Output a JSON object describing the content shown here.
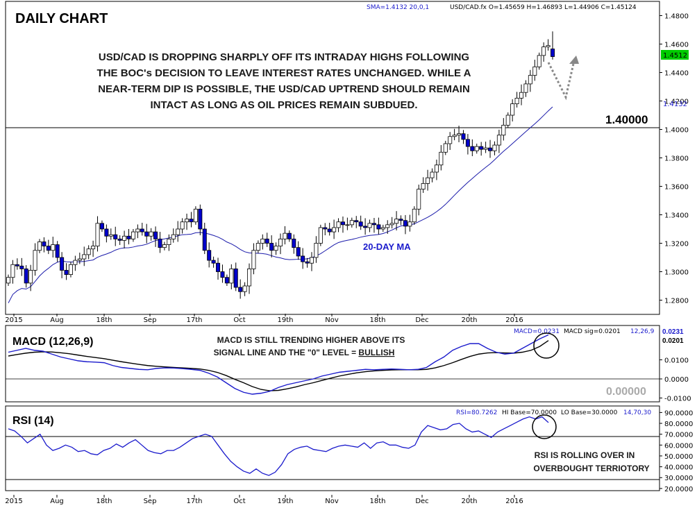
{
  "header": {
    "title": "DAILY CHART",
    "sma_legend": "SMA=1.4132  20,0,1",
    "ohlc_legend": "USD/CAD.fx O=1.45659 H=1.46893 L=1.44906 C=1.45124"
  },
  "annotations": {
    "main_lines": [
      "USD/CAD IS DROPPING SHARPLY OFF ITS INTRADAY HIGHS FOLLOWING",
      "THE BOC's DECISION TO LEAVE INTEREST RATES UNCHANGED. WHILE A",
      "NEAR-TERM DIP IS POSSIBLE, THE USD/CAD UPTREND SHOULD REMAIN",
      "INTACT AS LONG AS OIL PRICES REMAIN SUBDUED."
    ],
    "ma_label": "20-DAY MA",
    "level_label": "1.40000",
    "macd_lines": [
      "MACD IS STILL TRENDING HIGHER ABOVE ITS",
      "SIGNAL LINE AND THE \"0\" LEVEL = ",
      "BULLISH"
    ],
    "rsi_lines": [
      "RSI IS ROLLING OVER IN",
      "OVERBOUGHT TERRIOTORY"
    ]
  },
  "macd_panel": {
    "title": "MACD (12,26,9)",
    "legend_macd": "MACD=0.0231",
    "legend_sig": "MACD sig=0.0201",
    "legend_params": "12,26,9",
    "zero_label": "0.00000",
    "value_tag": "0.0231",
    "sig_tag": "0.0201"
  },
  "rsi_panel": {
    "title": "RSI (14)",
    "legend_rsi": "RSI=80.7262",
    "legend_hi": "HI Base=70.0000",
    "legend_lo": "LO Base=30.0000",
    "legend_params": "14,70,30"
  },
  "price_tags": {
    "last": "1.4512",
    "sma": "1.4132"
  },
  "x_axis_labels": [
    "2015",
    "Aug",
    "18th",
    "Sep",
    "17th",
    "Oct",
    "19th",
    "Nov",
    "18th",
    "Dec",
    "20th",
    "2016"
  ],
  "colors": {
    "up": "#ffffff",
    "down": "#0000cc",
    "ma": "#1a1aaa",
    "macd": "#1a1acc",
    "signal": "#000000",
    "last_tag": "#00cc00",
    "annotation": "#1a1a1a",
    "bullish": "#1a1a1a"
  },
  "chart_data": [
    {
      "type": "candlestick",
      "title": "DAILY CHART",
      "symbol": "USD/CAD.fx",
      "ylim": [
        1.27,
        1.49
      ],
      "yticks": [
        "1.4800",
        "1.4600",
        "1.4400",
        "1.4200",
        "1.4000",
        "1.3800",
        "1.3600",
        "1.3400",
        "1.3200",
        "1.3000",
        "1.2800"
      ],
      "reference_line": 1.4,
      "moving_average": {
        "name": "SMA 20",
        "last": 1.4132
      },
      "ohlc_last": {
        "open": 1.45659,
        "high": 1.46893,
        "low": 1.44906,
        "close": 1.45124
      },
      "closes": [
        1.296,
        1.305,
        1.304,
        1.302,
        1.292,
        1.301,
        1.315,
        1.321,
        1.318,
        1.315,
        1.319,
        1.31,
        1.301,
        1.298,
        1.305,
        1.308,
        1.309,
        1.312,
        1.316,
        1.318,
        1.334,
        1.33,
        1.325,
        1.326,
        1.323,
        1.322,
        1.325,
        1.323,
        1.328,
        1.33,
        1.328,
        1.325,
        1.328,
        1.323,
        1.317,
        1.319,
        1.323,
        1.326,
        1.33,
        1.335,
        1.337,
        1.335,
        1.344,
        1.33,
        1.315,
        1.308,
        1.306,
        1.3,
        1.296,
        1.292,
        1.302,
        1.289,
        1.286,
        1.29,
        1.302,
        1.315,
        1.32,
        1.323,
        1.32,
        1.315,
        1.318,
        1.323,
        1.327,
        1.323,
        1.317,
        1.311,
        1.307,
        1.306,
        1.31,
        1.32,
        1.331,
        1.33,
        1.328,
        1.331,
        1.335,
        1.333,
        1.333,
        1.336,
        1.335,
        1.332,
        1.331,
        1.334,
        1.333,
        1.33,
        1.331,
        1.333,
        1.334,
        1.337,
        1.336,
        1.332,
        1.335,
        1.344,
        1.358,
        1.362,
        1.366,
        1.37,
        1.375,
        1.384,
        1.39,
        1.395,
        1.396,
        1.397,
        1.393,
        1.388,
        1.385,
        1.388,
        1.386,
        1.387,
        1.385,
        1.389,
        1.396,
        1.403,
        1.41,
        1.418,
        1.422,
        1.426,
        1.432,
        1.438,
        1.444,
        1.452,
        1.458,
        1.459,
        1.4512
      ]
    },
    {
      "type": "line",
      "title": "MACD (12,26,9)",
      "series": [
        {
          "name": "MACD"
        },
        {
          "name": "MACD sig"
        }
      ],
      "last": {
        "macd": 0.0231,
        "signal": 0.0201
      },
      "ylim": [
        -0.012,
        0.028
      ],
      "yticks": [
        "0.0100",
        "0.0000",
        "-0.0100"
      ],
      "macd": [
        0.014,
        0.015,
        0.016,
        0.015,
        0.0145,
        0.013,
        0.0115,
        0.0105,
        0.0095,
        0.009,
        0.0088,
        0.0085,
        0.007,
        0.006,
        0.0055,
        0.005,
        0.0048,
        0.0055,
        0.0058,
        0.0057,
        0.0054,
        0.005,
        0.0045,
        0.003,
        0.001,
        -0.002,
        -0.005,
        -0.007,
        -0.008,
        -0.0075,
        -0.0065,
        -0.0045,
        -0.003,
        -0.002,
        -0.001,
        0.0,
        0.0015,
        0.0025,
        0.0035,
        0.004,
        0.0045,
        0.005,
        0.0048,
        0.005,
        0.0052,
        0.005,
        0.0048,
        0.005,
        0.006,
        0.009,
        0.0115,
        0.015,
        0.017,
        0.0185,
        0.0185,
        0.016,
        0.014,
        0.013,
        0.0135,
        0.016,
        0.0185,
        0.021,
        0.0231
      ],
      "signal": [
        0.012,
        0.0128,
        0.0135,
        0.014,
        0.0142,
        0.0141,
        0.0137,
        0.0132,
        0.0125,
        0.0118,
        0.0112,
        0.0106,
        0.0098,
        0.009,
        0.0083,
        0.0076,
        0.007,
        0.0066,
        0.0063,
        0.006,
        0.0058,
        0.0055,
        0.0052,
        0.0045,
        0.0034,
        0.0018,
        -0.0002,
        -0.002,
        -0.004,
        -0.0055,
        -0.0062,
        -0.006,
        -0.0052,
        -0.0042,
        -0.003,
        -0.002,
        -0.0008,
        0.0004,
        0.0015,
        0.0024,
        0.0032,
        0.0038,
        0.0042,
        0.0045,
        0.0047,
        0.0048,
        0.0048,
        0.0048,
        0.005,
        0.0058,
        0.007,
        0.0085,
        0.0102,
        0.0118,
        0.013,
        0.0136,
        0.0138,
        0.0136,
        0.0135,
        0.014,
        0.015,
        0.017,
        0.0201
      ]
    },
    {
      "type": "line",
      "title": "RSI (14)",
      "series": [
        {
          "name": "RSI"
        }
      ],
      "last": 80.7262,
      "hi_base": 70,
      "lo_base": 30,
      "ylim": [
        18,
        96
      ],
      "yticks": [
        "90.0000",
        "80.0000",
        "70.0000",
        "60.0000",
        "50.0000",
        "40.0000",
        "30.0000",
        "20.0000"
      ],
      "values": [
        75,
        73,
        68,
        62,
        66,
        70,
        60,
        55,
        57,
        60,
        58,
        54,
        55,
        52,
        51,
        55,
        57,
        61,
        58,
        62,
        65,
        60,
        55,
        53,
        52,
        55,
        55,
        58,
        62,
        66,
        68,
        70,
        68,
        60,
        52,
        45,
        40,
        36,
        34,
        38,
        34,
        32,
        35,
        42,
        52,
        56,
        58,
        59,
        56,
        55,
        54,
        57,
        59,
        60,
        59,
        58,
        62,
        57,
        62,
        63,
        60,
        60,
        58,
        57,
        60,
        72,
        78,
        76,
        74,
        75,
        79,
        80,
        75,
        72,
        73,
        70,
        67,
        72,
        75,
        78,
        81,
        84,
        86,
        84,
        86,
        80.7262
      ]
    }
  ]
}
